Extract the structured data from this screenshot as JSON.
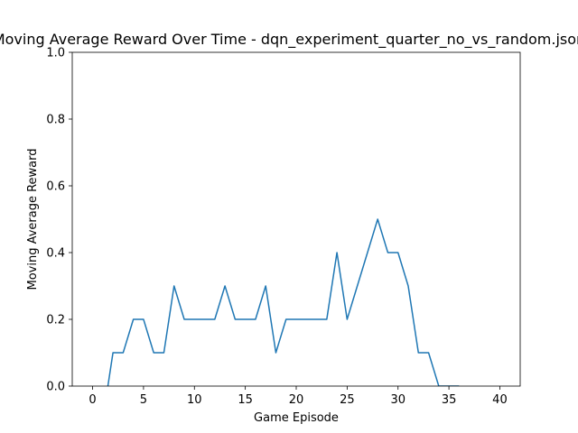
{
  "chart_data": {
    "type": "line",
    "title": "Moving Average Reward Over Time - dqn_experiment_quarter_no_vs_random.json",
    "xlabel": "Game Episode",
    "ylabel": "Moving Average Reward",
    "xlim": [
      -2,
      42
    ],
    "ylim": [
      0,
      1.0
    ],
    "xticks": [
      "0",
      "5",
      "10",
      "15",
      "20",
      "25",
      "30",
      "35",
      "40"
    ],
    "yticks": [
      "0.0",
      "0.2",
      "0.4",
      "0.6",
      "0.8",
      "1.0"
    ],
    "grid": false,
    "series": [
      {
        "color": "#1f77b4",
        "x": [
          0,
          1,
          2,
          3,
          4,
          5,
          6,
          7,
          8,
          9,
          10,
          11,
          12,
          13,
          14,
          15,
          16,
          17,
          18,
          19,
          20,
          21,
          22,
          23,
          24,
          25,
          26,
          27,
          28,
          29,
          30,
          31,
          32,
          33,
          34,
          35,
          36
        ],
        "y": [
          -0.1,
          -0.1,
          0.1,
          0.1,
          0.2,
          0.2,
          0.1,
          0.1,
          0.3,
          0.2,
          0.2,
          0.2,
          0.2,
          0.3,
          0.2,
          0.2,
          0.2,
          0.3,
          0.1,
          0.2,
          0.2,
          0.2,
          0.2,
          0.2,
          0.4,
          0.2,
          0.3,
          0.4,
          0.5,
          0.4,
          0.4,
          0.3,
          0.1,
          0.1,
          0.0,
          0.0,
          0.0
        ]
      }
    ]
  }
}
